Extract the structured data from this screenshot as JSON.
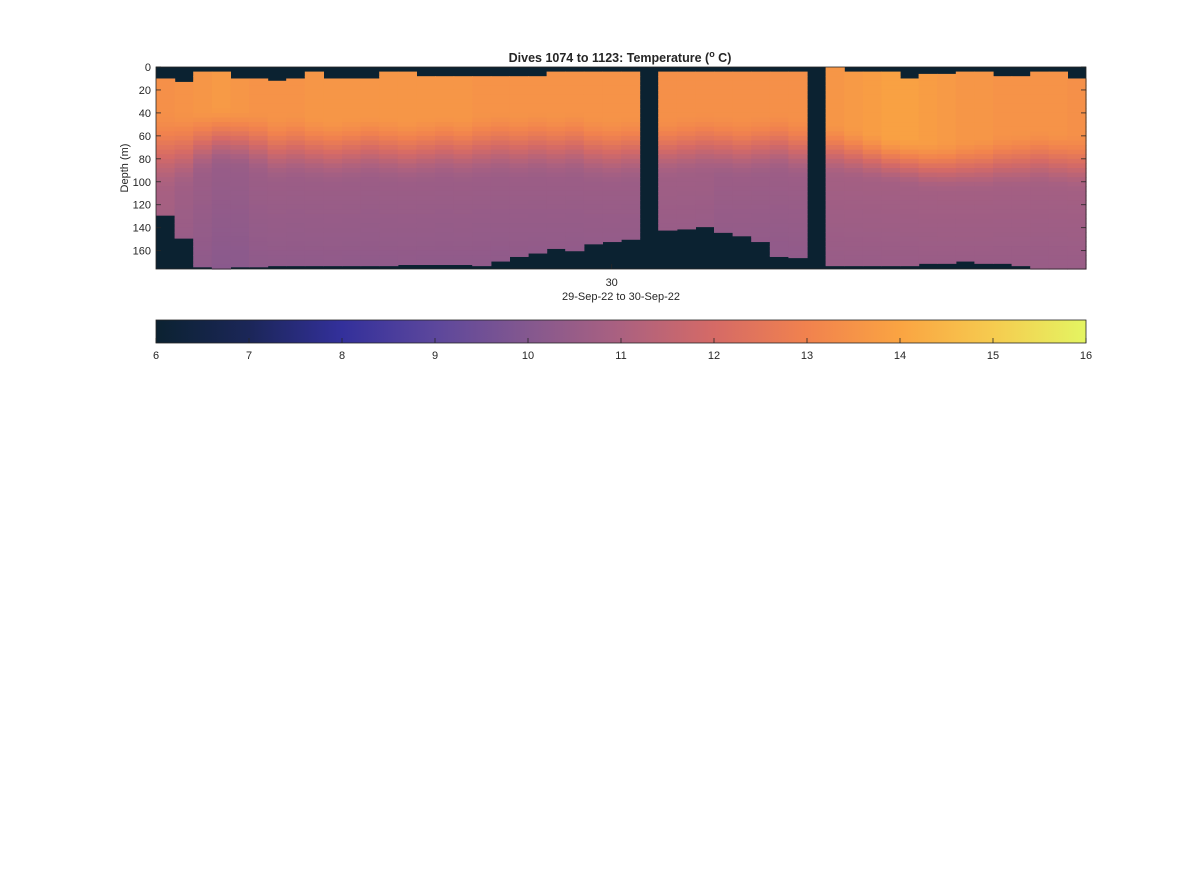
{
  "chart_data": {
    "type": "heatmap",
    "title": {
      "prefix": "Dives 1074 to 1123: Temperature (",
      "superscript": "o",
      "suffix": " C)"
    },
    "ylabel": "Depth (m)",
    "xlabel": "29-Sep-22 to 30-Sep-22",
    "x_tick_labels": [
      "30"
    ],
    "y_ticks": [
      0,
      20,
      40,
      60,
      80,
      100,
      120,
      140,
      160
    ],
    "ylim": [
      0,
      176
    ],
    "y_reversed": true,
    "dives": {
      "first": 1074,
      "last": 1123
    },
    "colorbar": {
      "orientation": "horizontal",
      "range": [
        6,
        16
      ],
      "ticks": [
        6,
        7,
        8,
        9,
        10,
        11,
        12,
        13,
        14,
        15,
        16
      ],
      "stops": [
        {
          "t": 6,
          "color": "#0b2231"
        },
        {
          "t": 7,
          "color": "#1b2658"
        },
        {
          "t": 8,
          "color": "#33309b"
        },
        {
          "t": 9,
          "color": "#5c479c"
        },
        {
          "t": 10,
          "color": "#84588f"
        },
        {
          "t": 11,
          "color": "#ab6180"
        },
        {
          "t": 12,
          "color": "#d56a66"
        },
        {
          "t": 13,
          "color": "#f1824e"
        },
        {
          "t": 14,
          "color": "#faa442"
        },
        {
          "t": 15,
          "color": "#f6cb4f"
        },
        {
          "t": 16,
          "color": "#e4f562"
        }
      ]
    },
    "no_data_color": "#0b2231",
    "profiles": {
      "columns": 50,
      "x_tick_position": 24.5,
      "cast_top_depth_m": [
        10,
        13,
        4,
        4,
        10,
        10,
        12,
        10,
        4,
        10,
        10,
        10,
        4,
        4,
        8,
        8,
        8,
        8,
        8,
        8,
        8,
        4,
        4,
        4,
        4,
        4,
        0,
        4,
        4,
        4,
        4,
        4,
        4,
        4,
        4,
        4,
        0,
        4,
        4,
        4,
        10,
        6,
        6,
        4,
        4,
        8,
        8,
        4,
        4,
        10
      ],
      "cast_bottom_depth_m": [
        129,
        149,
        174,
        176,
        174,
        174,
        173,
        173,
        173,
        173,
        173,
        173,
        173,
        172,
        172,
        172,
        172,
        173,
        169,
        165,
        162,
        158,
        160,
        154,
        152,
        150,
        0,
        142,
        141,
        139,
        144,
        147,
        152,
        165,
        166,
        0,
        173,
        173,
        173,
        173,
        173,
        171,
        171,
        169,
        171,
        171,
        173,
        176,
        176,
        176
      ],
      "mixed_layer_depth_m": [
        40,
        38,
        36,
        34,
        36,
        38,
        42,
        40,
        42,
        44,
        42,
        40,
        42,
        44,
        42,
        40,
        42,
        40,
        38,
        40,
        38,
        40,
        38,
        42,
        44,
        42,
        0,
        44,
        42,
        40,
        42,
        44,
        42,
        40,
        44,
        0,
        48,
        52,
        56,
        60,
        62,
        64,
        64,
        62,
        60,
        58,
        56,
        54,
        56,
        58
      ],
      "surface_temp_c": [
        13.4,
        13.5,
        13.6,
        13.7,
        13.6,
        13.5,
        13.5,
        13.5,
        13.6,
        13.6,
        13.6,
        13.6,
        13.6,
        13.6,
        13.6,
        13.6,
        13.6,
        13.5,
        13.5,
        13.5,
        13.5,
        13.5,
        13.5,
        13.5,
        13.5,
        13.5,
        6,
        13.4,
        13.4,
        13.4,
        13.4,
        13.4,
        13.4,
        13.4,
        13.4,
        6,
        13.6,
        13.7,
        13.8,
        13.9,
        13.9,
        13.8,
        13.7,
        13.6,
        13.6,
        13.5,
        13.5,
        13.5,
        13.5,
        13.4
      ],
      "deep_temp_c": [
        10.9,
        10.7,
        10.6,
        10.5,
        10.5,
        10.6,
        10.6,
        10.6,
        10.6,
        10.6,
        10.6,
        10.6,
        10.6,
        10.6,
        10.6,
        10.6,
        10.6,
        10.6,
        10.6,
        10.6,
        10.6,
        10.6,
        10.6,
        10.6,
        10.6,
        10.6,
        6,
        10.7,
        10.7,
        10.7,
        10.6,
        10.6,
        10.6,
        10.6,
        10.6,
        6,
        10.8,
        10.8,
        10.8,
        10.8,
        10.8,
        10.8,
        10.8,
        10.8,
        10.8,
        10.8,
        10.8,
        10.8,
        10.8,
        10.8
      ],
      "thermocline_thickness_m": [
        70,
        70,
        60,
        55,
        55,
        58,
        60,
        60,
        60,
        60,
        60,
        60,
        60,
        60,
        60,
        60,
        60,
        60,
        60,
        60,
        60,
        60,
        60,
        60,
        60,
        60,
        0,
        55,
        55,
        55,
        55,
        55,
        55,
        55,
        55,
        0,
        50,
        48,
        46,
        44,
        44,
        45,
        46,
        48,
        50,
        50,
        52,
        52,
        52,
        52
      ]
    }
  }
}
